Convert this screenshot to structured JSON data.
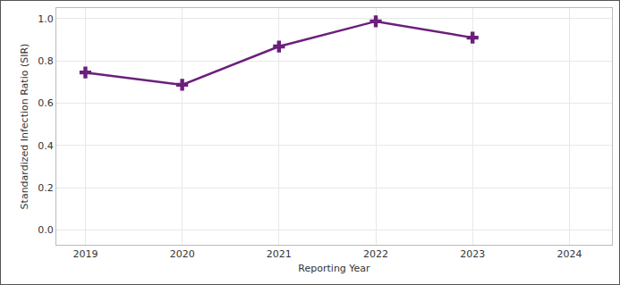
{
  "chart_data": {
    "type": "line",
    "x_label": "Reporting Year",
    "y_label": "Standardized Infection Ratio (SIR)",
    "x": [
      2019,
      2020,
      2021,
      2022,
      2023,
      2024
    ],
    "series": [
      {
        "color": "#6b1f7b",
        "marker": "cross",
        "line_style": "solid",
        "values": [
          0.745,
          0.687,
          0.868,
          0.987,
          0.91,
          null
        ]
      }
    ],
    "xlim": [
      2018.7,
      2024.44
    ],
    "xticks": [
      2019,
      2020,
      2021,
      2022,
      2023,
      2024
    ],
    "ylim": [
      -0.07,
      1.05
    ],
    "yticks": [
      {
        "value": 0,
        "label": "0.0"
      },
      0.2,
      0.4,
      0.6,
      0.8,
      {
        "value": 1,
        "label": "1.0"
      }
    ],
    "grid": true
  }
}
